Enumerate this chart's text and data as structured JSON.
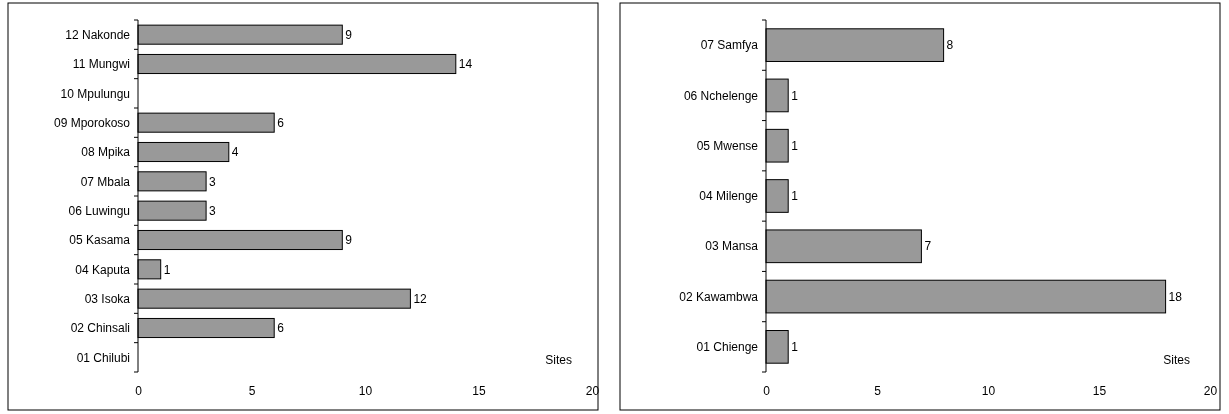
{
  "chart_data": [
    {
      "type": "bar",
      "orientation": "horizontal",
      "xlabel": "Sites",
      "categories": [
        "12 Nakonde",
        "11 Mungwi",
        "10 Mpulungu",
        "09 Mporokoso",
        "08 Mpika",
        "07 Mbala",
        "06 Luwingu",
        "05 Kasama",
        "04 Kaputa",
        "03 Isoka",
        "02 Chinsali",
        "01 Chilubi"
      ],
      "values": [
        9,
        14,
        null,
        6,
        4,
        3,
        3,
        9,
        1,
        12,
        6,
        null
      ],
      "color": "#999999",
      "xlim": [
        0,
        20
      ],
      "xticks": [
        0,
        5,
        10,
        15,
        20
      ],
      "data_labels": true,
      "grid": false
    },
    {
      "type": "bar",
      "orientation": "horizontal",
      "xlabel": "Sites",
      "categories": [
        "07 Samfya",
        "06 Nchelenge",
        "05 Mwense",
        "04 Milenge",
        "03 Mansa",
        "02 Kawambwa",
        "01 Chienge"
      ],
      "values": [
        8,
        1,
        1,
        1,
        7,
        18,
        1
      ],
      "color": "#999999",
      "xlim": [
        0,
        20
      ],
      "xticks": [
        0,
        5,
        10,
        15,
        20
      ],
      "data_labels": true,
      "grid": false
    }
  ]
}
